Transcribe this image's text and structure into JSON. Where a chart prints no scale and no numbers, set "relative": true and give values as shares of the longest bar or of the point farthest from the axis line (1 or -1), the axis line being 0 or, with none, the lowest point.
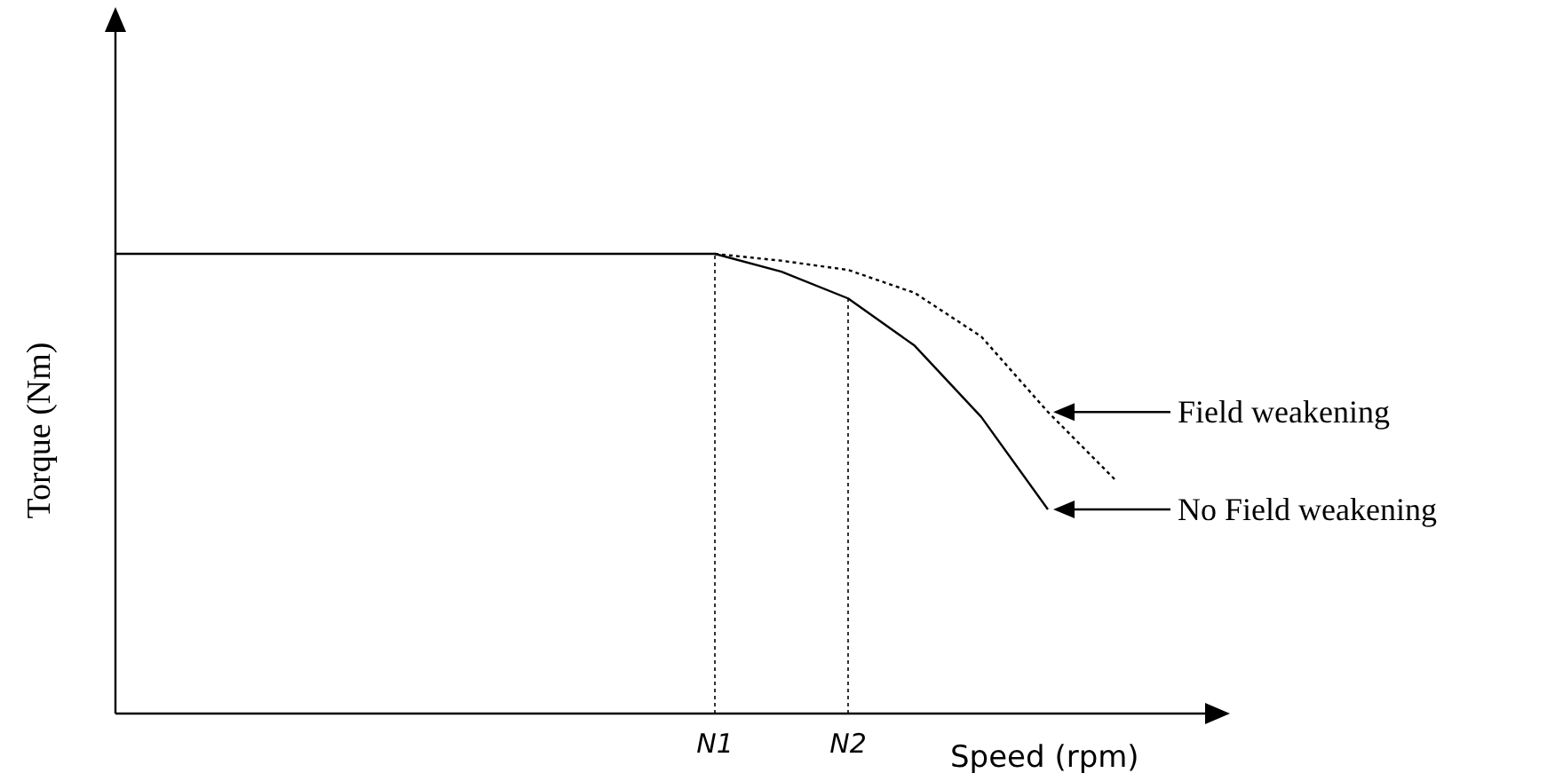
{
  "chart_data": {
    "type": "line",
    "relative": true,
    "xlabel": "Speed (rpm)",
    "ylabel": "Torque (Nm)",
    "categories": [
      null,
      null,
      null,
      null,
      null,
      null,
      null,
      null,
      null,
      "N1",
      null,
      "N2",
      null,
      null,
      null,
      null
    ],
    "series": [
      {
        "name": "Field weakening",
        "color": "#000000",
        "line_style": "dotted",
        "values": [
          null,
          null,
          null,
          null,
          null,
          null,
          null,
          null,
          null,
          1,
          0.985,
          0.965,
          0.915,
          0.82,
          0.656,
          0.51
        ]
      },
      {
        "name": "No Field weakening",
        "color": "#000000",
        "line_style": "solid",
        "values": [
          1,
          1,
          1,
          1,
          1,
          1,
          1,
          1,
          1,
          1,
          0.961,
          0.903,
          0.8,
          0.645,
          0.444,
          null
        ]
      }
    ],
    "ref_lines": [
      {
        "axis": "x",
        "value": "N1",
        "line_style": "dotted",
        "color": "#000000"
      },
      {
        "axis": "x",
        "value": "N2",
        "line_style": "dotted",
        "color": "#000000"
      }
    ],
    "legend": "right",
    "marker": "none"
  }
}
